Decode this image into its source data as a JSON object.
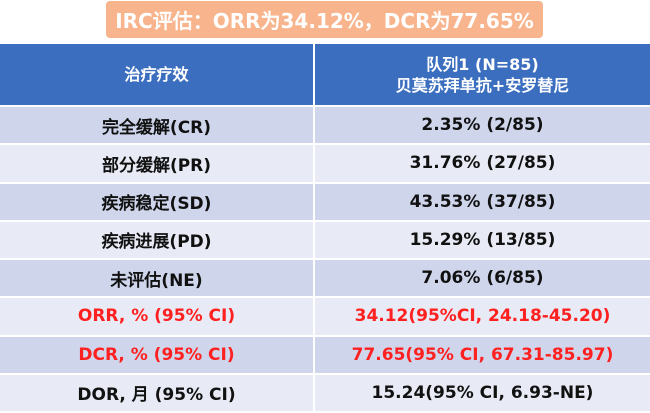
{
  "banner": "IRC评估：ORR为34.12%，DCR为77.65%",
  "header": {
    "col1": "治疗疗效",
    "col2_line1": "队列1 (N=85)",
    "col2_line2": "贝莫苏拜单抗+安罗替尼"
  },
  "rows": [
    {
      "label": "完全缓解(CR)",
      "value": "2.35% (2/85)"
    },
    {
      "label": "部分缓解(PR)",
      "value": "31.76% (27/85)"
    },
    {
      "label": "疾病稳定(SD)",
      "value": "43.53% (37/85)"
    },
    {
      "label": "疾病进展(PD)",
      "value": "15.29% (13/85)"
    },
    {
      "label": "未评估(NE)",
      "value": "7.06% (6/85)"
    },
    {
      "label": "ORR, % (95% CI)",
      "value": "34.12(95%CI, 24.18-45.20)"
    },
    {
      "label": "DCR, % (95% CI)",
      "value": "77.65(95% CI, 67.31-85.97)"
    },
    {
      "label": "DOR, 月 (95% CI)",
      "value": "15.24(95% CI, 6.93-NE)"
    }
  ],
  "colors": {
    "banner": "#f8b48c",
    "header": "#3c6ebf",
    "row_dark": "#cfd6ec",
    "row_light": "#e8ebf5",
    "highlight_text": "#ff2020"
  }
}
